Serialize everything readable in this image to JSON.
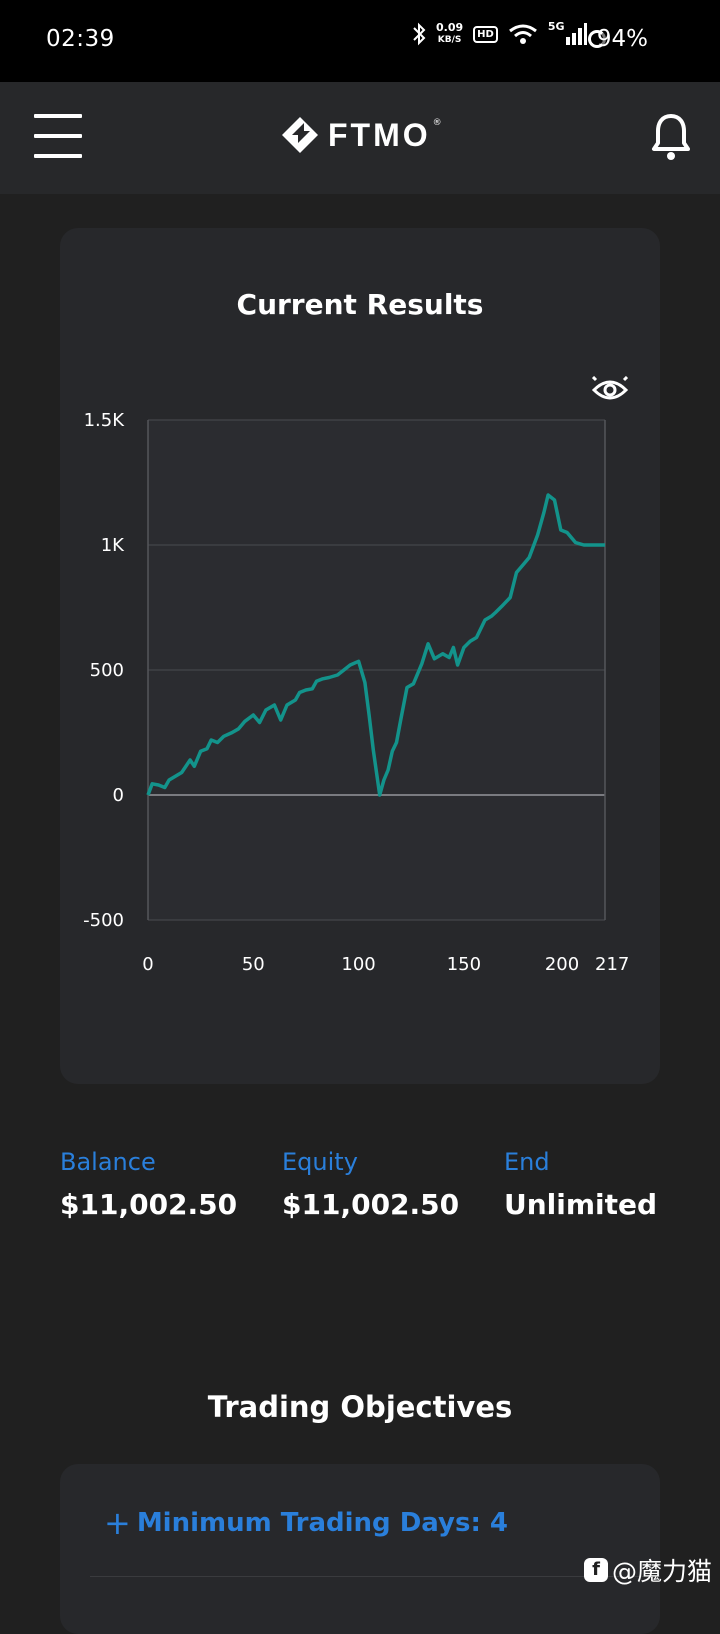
{
  "status_bar": {
    "time": "02:39",
    "net_speed_value": "0.09",
    "net_speed_unit": "KB/S",
    "hd_badge": "HD",
    "signal_label": "5G",
    "battery": "94%",
    "icons": [
      "bluetooth-icon",
      "wifi-icon",
      "signal-icon",
      "battery-icon"
    ]
  },
  "app_bar": {
    "logo_text": "FTMO",
    "logo_reg": "®",
    "icons": [
      "menu-icon",
      "ftmo-logo",
      "bell-icon"
    ]
  },
  "results_card": {
    "title": "Current Results",
    "visibility_icon": "eye-icon"
  },
  "chart_data": {
    "type": "line",
    "title": "Current Results",
    "xlabel": "",
    "ylabel": "",
    "xlim": [
      0,
      217
    ],
    "ylim": [
      -500,
      1500
    ],
    "x_ticks": [
      0,
      50,
      100,
      150,
      200,
      217
    ],
    "x_tick_labels": [
      "0",
      "50",
      "100",
      "150",
      "200",
      "217"
    ],
    "y_ticks": [
      -500,
      0,
      500,
      1000,
      1500
    ],
    "y_tick_labels": [
      "-500",
      "0",
      "500",
      "1K",
      "1.5K"
    ],
    "grid": "horizontal",
    "line_color": "#13938b",
    "series": [
      {
        "x": [
          0,
          2,
          5,
          8,
          10,
          13,
          16,
          20,
          22,
          25,
          28,
          30,
          33,
          36,
          40,
          43,
          46,
          50,
          53,
          56,
          60,
          63,
          66,
          70,
          72,
          75,
          78,
          80,
          83,
          86,
          90,
          93,
          96,
          100,
          103,
          105,
          107,
          110,
          112,
          114,
          116,
          118,
          120,
          123,
          126,
          130,
          133,
          136,
          140,
          143,
          145,
          147,
          150,
          153,
          156,
          160,
          163,
          165,
          168,
          172,
          175,
          178,
          181,
          185,
          188,
          190,
          193,
          196,
          199,
          201,
          203,
          205,
          207,
          209,
          211,
          214,
          217
        ],
        "y": [
          0,
          45,
          40,
          30,
          60,
          75,
          90,
          140,
          115,
          175,
          185,
          220,
          210,
          235,
          250,
          265,
          295,
          320,
          290,
          340,
          360,
          300,
          360,
          380,
          410,
          420,
          425,
          455,
          465,
          470,
          480,
          500,
          520,
          535,
          450,
          320,
          180,
          0,
          60,
          100,
          175,
          210,
          300,
          430,
          445,
          525,
          605,
          545,
          565,
          550,
          590,
          520,
          590,
          615,
          630,
          700,
          715,
          730,
          755,
          790,
          890,
          920,
          950,
          1040,
          1130,
          1200,
          1180,
          1060,
          1050,
          1030,
          1010,
          1005,
          1000,
          1000,
          1000,
          1000,
          1000
        ]
      }
    ]
  },
  "stats": [
    {
      "label": "Balance",
      "value": "$11,002.50"
    },
    {
      "label": "Equity",
      "value": "$11,002.50"
    },
    {
      "label": "End",
      "value": "Unlimited"
    }
  ],
  "objectives": {
    "section_title": "Trading Objectives",
    "items": [
      {
        "prefix": "+",
        "label": "Minimum Trading Days: 4"
      }
    ]
  },
  "watermark": {
    "badge": "f",
    "text": "@魔力猫"
  },
  "colors": {
    "background": "#202020",
    "card": "#27282b",
    "accent": "#2a7fdb",
    "chart_line": "#13938b"
  }
}
